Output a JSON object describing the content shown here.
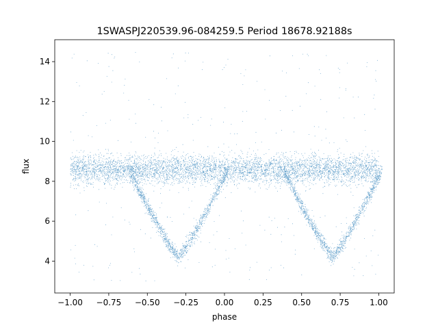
{
  "chart_data": {
    "type": "scatter",
    "title": "1SWASPJ220539.96-084259.5 Period 18678.92188s",
    "xlabel": "phase",
    "ylabel": "flux",
    "xlim": [
      -1.1,
      1.1
    ],
    "ylim": [
      2.4,
      15.1
    ],
    "x_ticks": [
      -1.0,
      -0.75,
      -0.5,
      -0.25,
      0.0,
      0.25,
      0.5,
      0.75,
      1.0
    ],
    "x_tick_labels": [
      "−1.00",
      "−0.75",
      "−0.50",
      "−0.25",
      "0.00",
      "0.25",
      "0.50",
      "0.75",
      "1.00"
    ],
    "y_ticks": [
      4,
      6,
      8,
      10,
      12,
      14
    ],
    "y_tick_labels": [
      "4",
      "6",
      "8",
      "10",
      "12",
      "14"
    ],
    "grid": false,
    "legend": "none",
    "marker_color": "#1f77b4",
    "light_curve": {
      "phase_range": [
        -1.0,
        1.0
      ],
      "baseline_flux": 8.6,
      "baseline_scatter": 0.35,
      "eclipses": [
        {
          "center_phase": -0.3,
          "half_width": 0.32,
          "min_flux": 4.2
        },
        {
          "center_phase": 0.7,
          "half_width": 0.32,
          "min_flux": 4.2
        }
      ],
      "outlier_flux_range": [
        3.0,
        14.5
      ]
    }
  }
}
